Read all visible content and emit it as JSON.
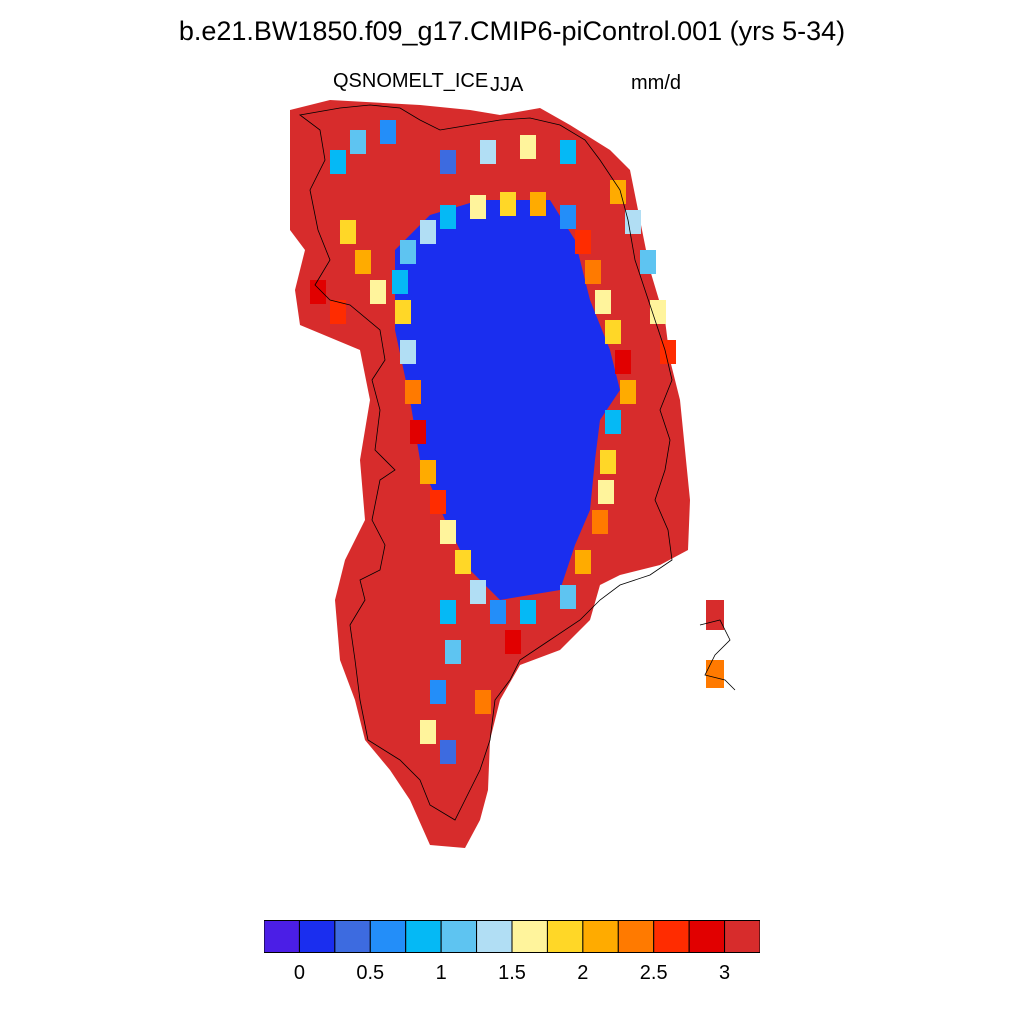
{
  "title": "b.e21.BW1850.f09_g17.CMIP6-piControl.001 (yrs 5-34)",
  "variable": "QSNOMELT_ICE",
  "season": "JJA",
  "units": "mm/d",
  "colorbar": {
    "colors": [
      "#4b1ee6",
      "#1a2eef",
      "#3d6be0",
      "#238ef9",
      "#05b9f5",
      "#5ec4f1",
      "#b1def4",
      "#fff49c",
      "#ffd727",
      "#ffab00",
      "#ff7a00",
      "#ff2c00",
      "#e10000",
      "#d72c2c"
    ],
    "tick_labels": [
      "0",
      "0.5",
      "1",
      "1.5",
      "2",
      "2.5",
      "3"
    ]
  },
  "map": {
    "region": "Greenland",
    "fill_colors": {
      "interior": "#1a2eef",
      "outer_margin": "#d72c2c"
    }
  }
}
